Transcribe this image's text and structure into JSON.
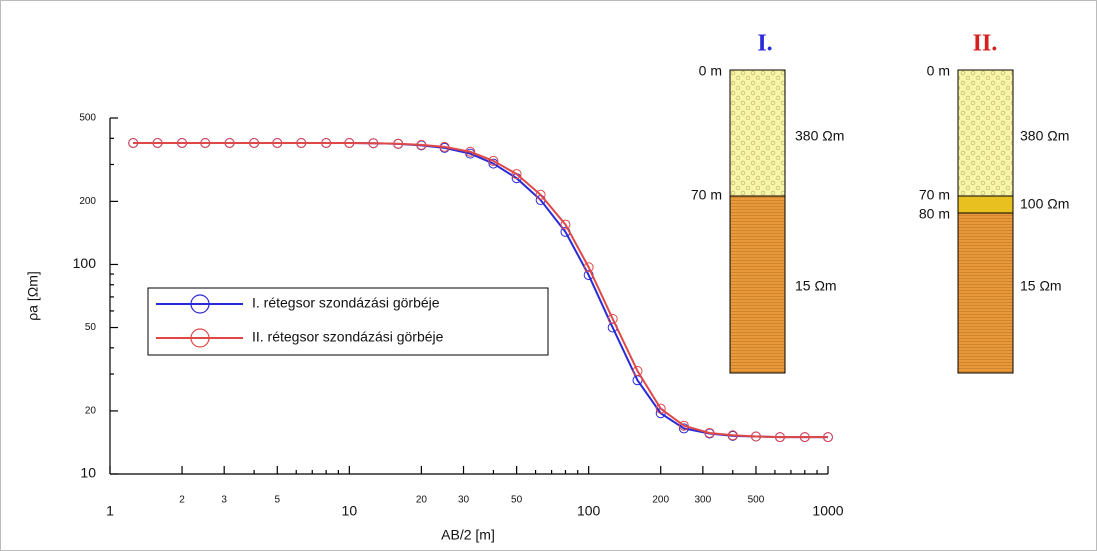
{
  "chart_data": {
    "type": "line",
    "x_label": "AB/2 [m]",
    "y_label": "ρa [Ωm]",
    "x": [
      1.25,
      1.58,
      2,
      2.5,
      3.16,
      4,
      5,
      6.3,
      8,
      10,
      12.6,
      16,
      20,
      25,
      32,
      40,
      50,
      63,
      80,
      100,
      126,
      160,
      200,
      250,
      320,
      400,
      500,
      630,
      800,
      1000
    ],
    "series": [
      {
        "name": "I. rétegsor szondázási görbéje",
        "color": "#2a2ad8",
        "values": [
          380,
          380,
          380,
          380,
          380,
          380,
          380,
          380,
          380,
          380,
          379,
          376,
          370,
          360,
          338,
          303,
          258,
          203,
          143,
          89,
          50,
          28,
          19.5,
          16.5,
          15.6,
          15.2,
          15.1,
          15,
          15,
          15
        ]
      },
      {
        "name": "II. rétegsor szondázási görbéje",
        "color": "#e04848",
        "values": [
          380,
          380,
          380,
          380,
          380,
          380,
          380,
          380,
          380,
          380,
          379,
          377,
          372,
          364,
          345,
          312,
          270,
          215,
          155,
          97,
          55,
          31,
          20.5,
          17,
          15.7,
          15.3,
          15.1,
          15,
          15,
          15
        ]
      }
    ],
    "xscale": "log",
    "yscale": "log",
    "xlim": [
      1,
      1000
    ],
    "ylim": [
      10,
      500
    ],
    "xticks": [
      1,
      2,
      3,
      5,
      10,
      20,
      30,
      50,
      100,
      200,
      300,
      500,
      1000
    ],
    "xminorticks": [
      4,
      6,
      7,
      8,
      9,
      40,
      60,
      70,
      80,
      90,
      400,
      600,
      700,
      800,
      900
    ],
    "yticks": [
      10,
      20,
      50,
      100,
      200,
      500
    ],
    "yminorticks": [
      30,
      40,
      60,
      70,
      80,
      90,
      300,
      400
    ],
    "grid": false,
    "legend": "center-left"
  },
  "columns": [
    {
      "title": "I.",
      "top": "0 m",
      "layers": [
        {
          "resistivity": "380 Ωm",
          "bottom": "70 m"
        },
        {
          "resistivity": "15 Ωm"
        }
      ]
    },
    {
      "title": "II.",
      "top": "0 m",
      "layers": [
        {
          "resistivity": "380 Ωm",
          "bottom": "70 m"
        },
        {
          "resistivity": "100 Ωm",
          "bottom": "80 m"
        },
        {
          "resistivity": "15 Ωm"
        }
      ]
    }
  ]
}
